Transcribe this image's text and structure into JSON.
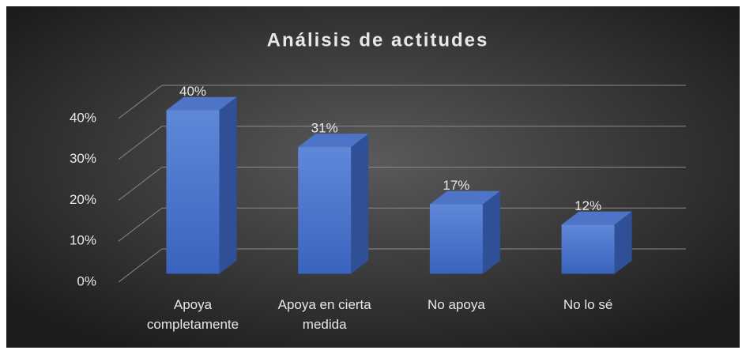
{
  "chart_data": {
    "type": "bar3d",
    "title": "Análisis de actitudes",
    "categories": [
      "Apoya completamente",
      "Apoya en cierta medida",
      "No apoya",
      "No lo sé"
    ],
    "values": [
      40,
      31,
      17,
      12
    ],
    "value_labels": [
      "40%",
      "31%",
      "17%",
      "12%"
    ],
    "color": "#4472c4",
    "ylim": [
      0,
      40
    ],
    "yticks": [
      {
        "value": 0,
        "label": "0%"
      },
      {
        "value": 10,
        "label": "10%"
      },
      {
        "value": 20,
        "label": "20%"
      },
      {
        "value": 30,
        "label": "30%"
      },
      {
        "value": 40,
        "label": "40%"
      }
    ],
    "grid": true
  }
}
